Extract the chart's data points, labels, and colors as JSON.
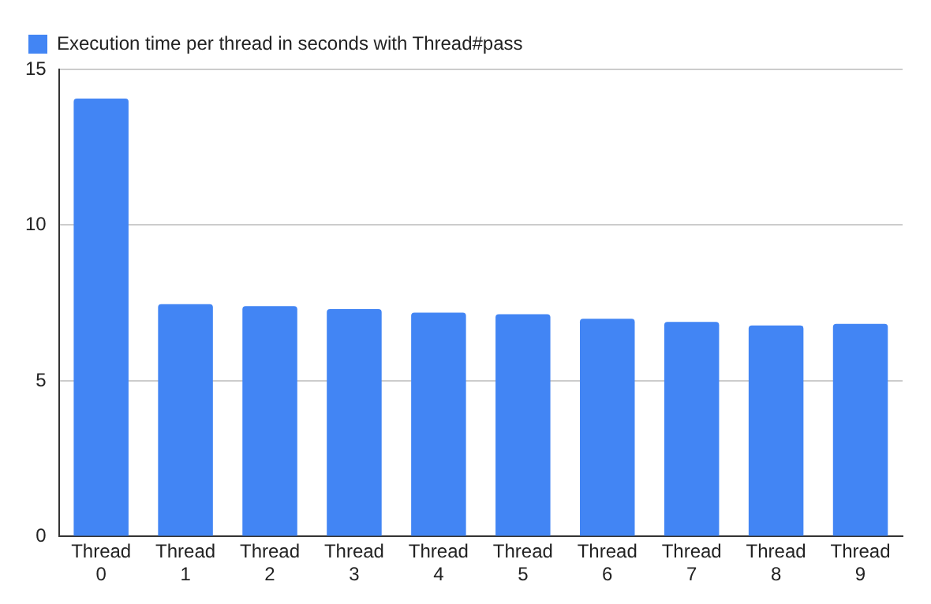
{
  "chart_data": {
    "type": "bar",
    "categories": [
      "Thread 0",
      "Thread 1",
      "Thread 2",
      "Thread 3",
      "Thread 4",
      "Thread 5",
      "Thread 6",
      "Thread 7",
      "Thread 8",
      "Thread 9"
    ],
    "series": [
      {
        "name": "Execution time per thread in seconds with Thread#pass",
        "color": "#4285f4",
        "values": [
          14.06,
          7.46,
          7.4,
          7.3,
          7.19,
          7.14,
          6.99,
          6.89,
          6.78,
          6.83
        ]
      }
    ],
    "ylim": [
      0,
      15
    ],
    "yticks": [
      0,
      5,
      10,
      15
    ],
    "grid": "y",
    "legend": "top left"
  }
}
